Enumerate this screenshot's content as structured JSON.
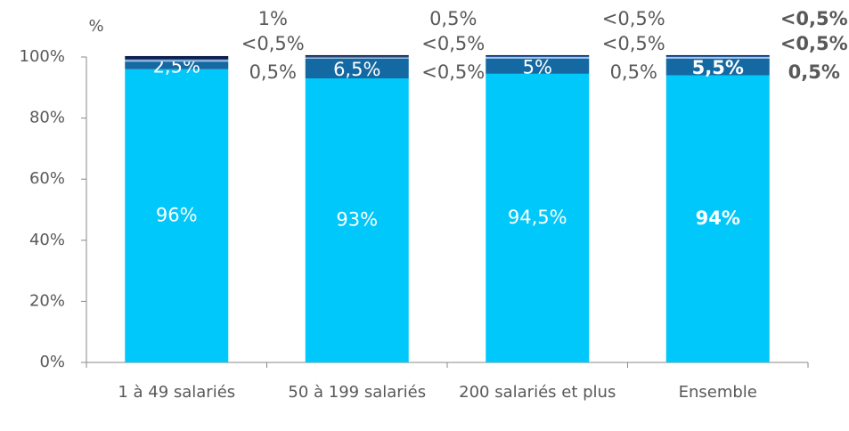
{
  "chart_data": {
    "type": "stacked_bar",
    "y_unit_label": "%",
    "categories": [
      "1 à 49 salariés",
      "50 à 199 salariés",
      "200 salariés et plus",
      "Ensemble"
    ],
    "series": [
      {
        "color": "#00c8fa",
        "values": [
          96,
          93,
          94.5,
          94
        ],
        "value_labels": [
          "96%",
          "93%",
          "94,5%",
          "94%"
        ]
      },
      {
        "color": "#1469a3",
        "values": [
          2.5,
          6.5,
          5,
          5.5
        ],
        "value_labels": [
          "2,5%",
          "6,5%",
          "5%",
          "5,5%"
        ]
      },
      {
        "color": "#9ec8e8",
        "values": [
          0.5,
          0.3,
          0.5,
          0.5
        ],
        "value_labels": [
          "0,5%",
          "<0,5%",
          "0,5%",
          "0,5%"
        ]
      },
      {
        "color": "#2f5aa0",
        "values": [
          0.3,
          0.3,
          0.3,
          0.3
        ],
        "value_labels": [
          "<0,5%",
          "<0,5%",
          "<0,5%",
          "<0,5%"
        ]
      },
      {
        "color": "#0b1f4f",
        "values": [
          1,
          0.5,
          0.3,
          0.3
        ],
        "value_labels": [
          "1%",
          "0,5%",
          "<0,5%",
          "<0,5%"
        ]
      }
    ],
    "ylim": [
      0,
      100
    ],
    "yticks": [
      {
        "value": 0,
        "label": "0%"
      },
      {
        "value": 20,
        "label": "20%"
      },
      {
        "value": 40,
        "label": "40%"
      },
      {
        "value": 60,
        "label": "60%"
      },
      {
        "value": 80,
        "label": "80%"
      },
      {
        "value": 100,
        "label": "100%"
      }
    ]
  }
}
